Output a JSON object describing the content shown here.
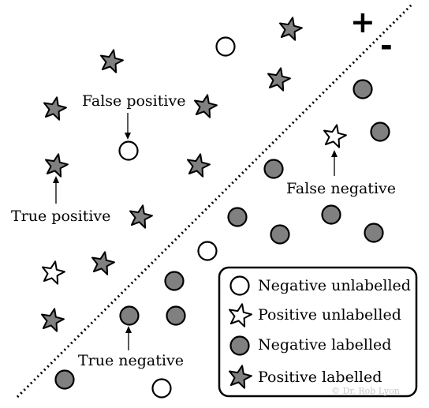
{
  "signs": {
    "plus": "+",
    "minus": "-"
  },
  "annotations": {
    "false_positive": "False positive",
    "false_negative": "False negative",
    "true_positive": "True positive",
    "true_negative": "True negative"
  },
  "legend": {
    "items": [
      {
        "symbol": "circle-open",
        "label": "Negative unlabelled"
      },
      {
        "symbol": "star-open",
        "label": "Positive unlabelled"
      },
      {
        "symbol": "circle-filled",
        "label": "Negative labelled"
      },
      {
        "symbol": "star-filled",
        "label": "Positive labelled"
      }
    ]
  },
  "watermark": "© Dr. Rob Lyon",
  "colors": {
    "fill": "#808080",
    "stroke": "#000000",
    "open": "#ffffff"
  }
}
